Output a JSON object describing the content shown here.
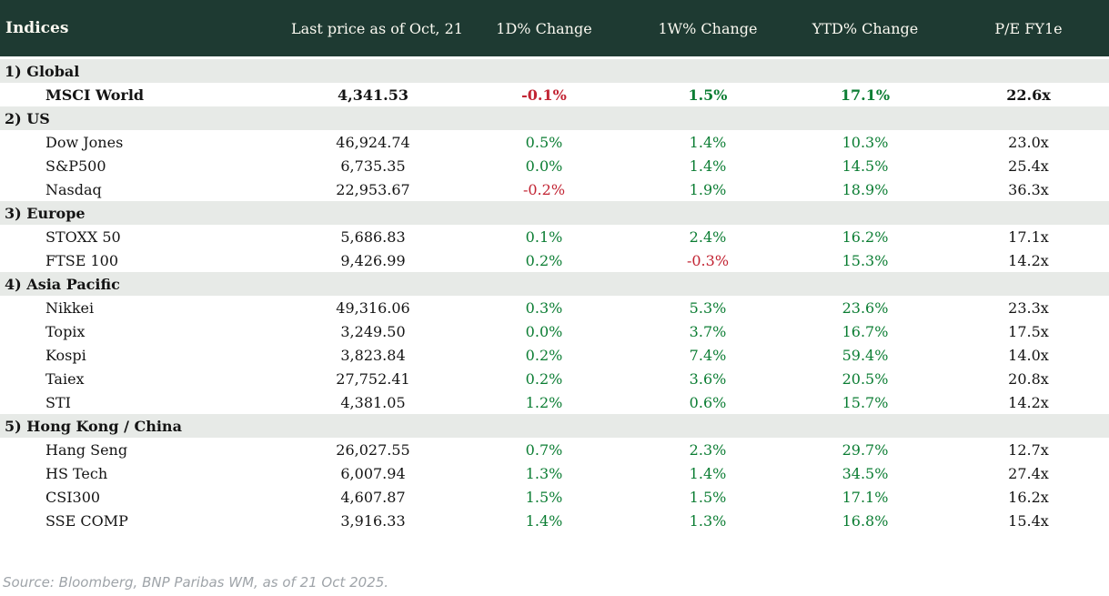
{
  "chart_data": {
    "type": "table",
    "columns": [
      "Indices",
      "Last price as of Oct, 21",
      "1D% Change",
      "1W% Change",
      "YTD% Change",
      "P/E FY1e"
    ],
    "sections": [
      {
        "label": "1) Global",
        "rows": [
          {
            "name": "MSCI World",
            "last_price": "4,341.53",
            "d1_change": "-0.1%",
            "w1_change": "1.5%",
            "ytd_change": "17.1%",
            "pe_fy1e": "22.6x",
            "bold": true
          }
        ]
      },
      {
        "label": "2) US",
        "rows": [
          {
            "name": "Dow Jones",
            "last_price": "46,924.74",
            "d1_change": "0.5%",
            "w1_change": "1.4%",
            "ytd_change": "10.3%",
            "pe_fy1e": "23.0x",
            "bold": false
          },
          {
            "name": "S&P500",
            "last_price": "6,735.35",
            "d1_change": "0.0%",
            "w1_change": "1.4%",
            "ytd_change": "14.5%",
            "pe_fy1e": "25.4x",
            "bold": false
          },
          {
            "name": "Nasdaq",
            "last_price": "22,953.67",
            "d1_change": "-0.2%",
            "w1_change": "1.9%",
            "ytd_change": "18.9%",
            "pe_fy1e": "36.3x",
            "bold": false
          }
        ]
      },
      {
        "label": "3) Europe",
        "rows": [
          {
            "name": "STOXX 50",
            "last_price": "5,686.83",
            "d1_change": "0.1%",
            "w1_change": "2.4%",
            "ytd_change": "16.2%",
            "pe_fy1e": "17.1x",
            "bold": false
          },
          {
            "name": "FTSE 100",
            "last_price": "9,426.99",
            "d1_change": "0.2%",
            "w1_change": "-0.3%",
            "ytd_change": "15.3%",
            "pe_fy1e": "14.2x",
            "bold": false
          }
        ]
      },
      {
        "label": "4) Asia Pacific",
        "rows": [
          {
            "name": "Nikkei",
            "last_price": "49,316.06",
            "d1_change": "0.3%",
            "w1_change": "5.3%",
            "ytd_change": "23.6%",
            "pe_fy1e": "23.3x",
            "bold": false
          },
          {
            "name": "Topix",
            "last_price": "3,249.50",
            "d1_change": "0.0%",
            "w1_change": "3.7%",
            "ytd_change": "16.7%",
            "pe_fy1e": "17.5x",
            "bold": false
          },
          {
            "name": "Kospi",
            "last_price": "3,823.84",
            "d1_change": "0.2%",
            "w1_change": "7.4%",
            "ytd_change": "59.4%",
            "pe_fy1e": "14.0x",
            "bold": false
          },
          {
            "name": "Taiex",
            "last_price": "27,752.41",
            "d1_change": "0.2%",
            "w1_change": "3.6%",
            "ytd_change": "20.5%",
            "pe_fy1e": "20.8x",
            "bold": false
          },
          {
            "name": "STI",
            "last_price": "4,381.05",
            "d1_change": "1.2%",
            "w1_change": "0.6%",
            "ytd_change": "15.7%",
            "pe_fy1e": "14.2x",
            "bold": false
          }
        ]
      },
      {
        "label": "5) Hong Kong / China",
        "rows": [
          {
            "name": "Hang Seng",
            "last_price": "26,027.55",
            "d1_change": "0.7%",
            "w1_change": "2.3%",
            "ytd_change": "29.7%",
            "pe_fy1e": "12.7x",
            "bold": false
          },
          {
            "name": "HS Tech",
            "last_price": "6,007.94",
            "d1_change": "1.3%",
            "w1_change": "1.4%",
            "ytd_change": "34.5%",
            "pe_fy1e": "27.4x",
            "bold": false
          },
          {
            "name": "CSI300",
            "last_price": "4,607.87",
            "d1_change": "1.5%",
            "w1_change": "1.5%",
            "ytd_change": "17.1%",
            "pe_fy1e": "16.2x",
            "bold": false
          },
          {
            "name": "SSE COMP",
            "last_price": "3,916.33",
            "d1_change": "1.4%",
            "w1_change": "1.3%",
            "ytd_change": "16.8%",
            "pe_fy1e": "15.4x",
            "bold": false
          }
        ]
      }
    ]
  },
  "footer": {
    "source": "Source: Bloomberg, BNP Paribas WM, as of 21 Oct 2025."
  },
  "colors": {
    "header_bg": "#1e3a32",
    "header_text": "#fbf9f1",
    "section_bg": "#e7eae7",
    "positive": "#0b7d33",
    "negative": "#c22433",
    "text": "#141414",
    "source_text": "#9fa4a9"
  }
}
